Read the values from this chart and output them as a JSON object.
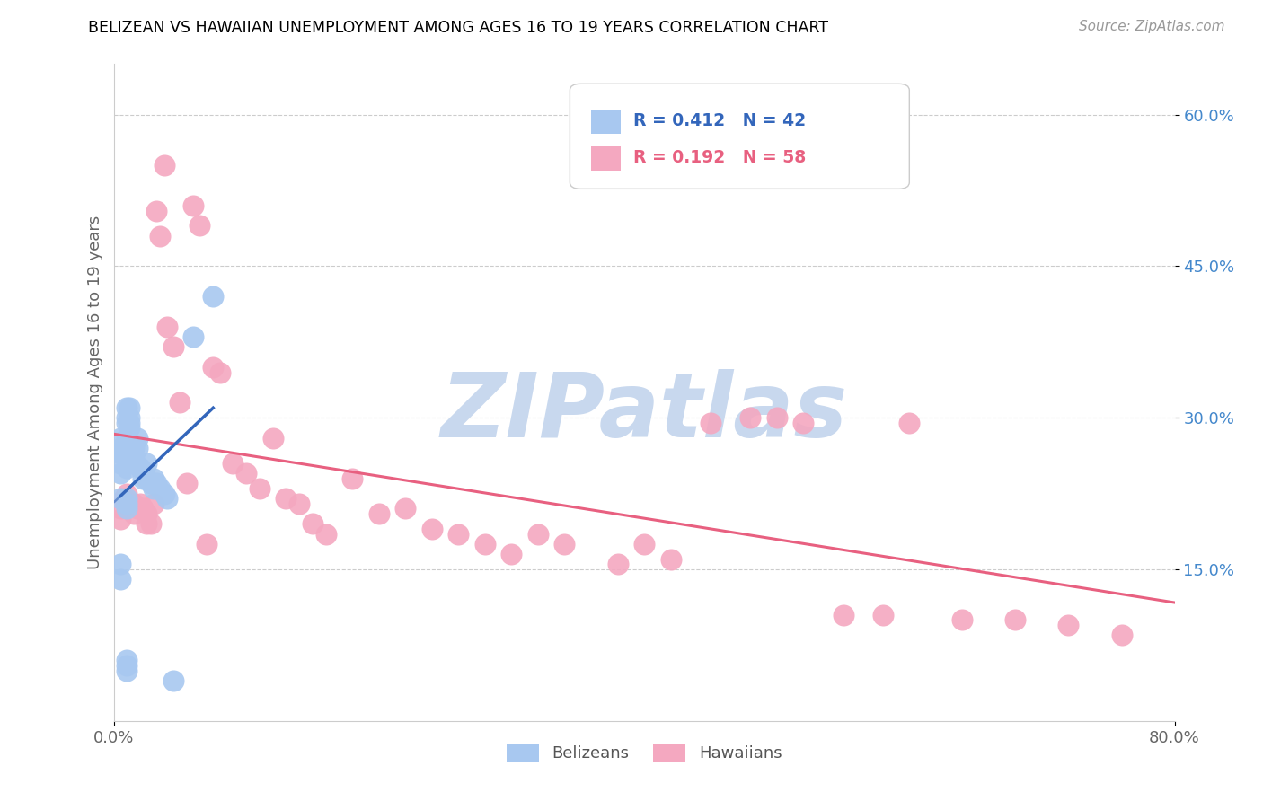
{
  "title": "BELIZEAN VS HAWAIIAN UNEMPLOYMENT AMONG AGES 16 TO 19 YEARS CORRELATION CHART",
  "source": "Source: ZipAtlas.com",
  "ylabel": "Unemployment Among Ages 16 to 19 years",
  "xlim": [
    0.0,
    0.8
  ],
  "ylim": [
    0.0,
    0.65
  ],
  "xticks": [
    0.0,
    0.8
  ],
  "xticklabels": [
    "0.0%",
    "80.0%"
  ],
  "ytick_positions": [
    0.15,
    0.3,
    0.45,
    0.6
  ],
  "ytick_labels_right": [
    "15.0%",
    "30.0%",
    "45.0%",
    "60.0%"
  ],
  "belizean_R": 0.412,
  "belizean_N": 42,
  "hawaiian_R": 0.192,
  "hawaiian_N": 58,
  "belizean_color": "#A8C8F0",
  "hawaiian_color": "#F4A8C0",
  "belizean_line_color": "#3366BB",
  "hawaiian_line_color": "#E86080",
  "legend_label_blue": "Belizeans",
  "legend_label_pink": "Hawaiians",
  "watermark_text": "ZIPatlas",
  "watermark_color": "#C8D8EE",
  "belizean_x": [
    0.005,
    0.005,
    0.005,
    0.005,
    0.005,
    0.005,
    0.005,
    0.005,
    0.01,
    0.01,
    0.01,
    0.01,
    0.01,
    0.01,
    0.01,
    0.01,
    0.01,
    0.01,
    0.01,
    0.01,
    0.012,
    0.012,
    0.012,
    0.012,
    0.015,
    0.015,
    0.018,
    0.018,
    0.02,
    0.022,
    0.025,
    0.025,
    0.028,
    0.03,
    0.03,
    0.032,
    0.035,
    0.038,
    0.04,
    0.045,
    0.06,
    0.075
  ],
  "belizean_y": [
    0.14,
    0.155,
    0.22,
    0.245,
    0.255,
    0.265,
    0.27,
    0.28,
    0.05,
    0.055,
    0.06,
    0.21,
    0.215,
    0.22,
    0.25,
    0.26,
    0.28,
    0.295,
    0.3,
    0.31,
    0.29,
    0.295,
    0.3,
    0.31,
    0.26,
    0.27,
    0.27,
    0.28,
    0.25,
    0.24,
    0.24,
    0.255,
    0.235,
    0.23,
    0.24,
    0.235,
    0.23,
    0.225,
    0.22,
    0.04,
    0.38,
    0.42
  ],
  "hawaiian_x": [
    0.005,
    0.005,
    0.008,
    0.01,
    0.01,
    0.012,
    0.015,
    0.015,
    0.018,
    0.02,
    0.022,
    0.025,
    0.025,
    0.028,
    0.03,
    0.032,
    0.035,
    0.038,
    0.04,
    0.045,
    0.05,
    0.055,
    0.06,
    0.065,
    0.07,
    0.075,
    0.08,
    0.09,
    0.1,
    0.11,
    0.12,
    0.13,
    0.14,
    0.15,
    0.16,
    0.18,
    0.2,
    0.22,
    0.24,
    0.26,
    0.28,
    0.3,
    0.32,
    0.34,
    0.38,
    0.4,
    0.42,
    0.45,
    0.48,
    0.5,
    0.52,
    0.55,
    0.58,
    0.6,
    0.64,
    0.68,
    0.72,
    0.76
  ],
  "hawaiian_y": [
    0.2,
    0.21,
    0.22,
    0.215,
    0.225,
    0.215,
    0.205,
    0.215,
    0.21,
    0.215,
    0.21,
    0.195,
    0.205,
    0.195,
    0.215,
    0.505,
    0.48,
    0.55,
    0.39,
    0.37,
    0.315,
    0.235,
    0.51,
    0.49,
    0.175,
    0.35,
    0.345,
    0.255,
    0.245,
    0.23,
    0.28,
    0.22,
    0.215,
    0.195,
    0.185,
    0.24,
    0.205,
    0.21,
    0.19,
    0.185,
    0.175,
    0.165,
    0.185,
    0.175,
    0.155,
    0.175,
    0.16,
    0.295,
    0.3,
    0.3,
    0.295,
    0.105,
    0.105,
    0.295,
    0.1,
    0.1,
    0.095,
    0.085
  ]
}
